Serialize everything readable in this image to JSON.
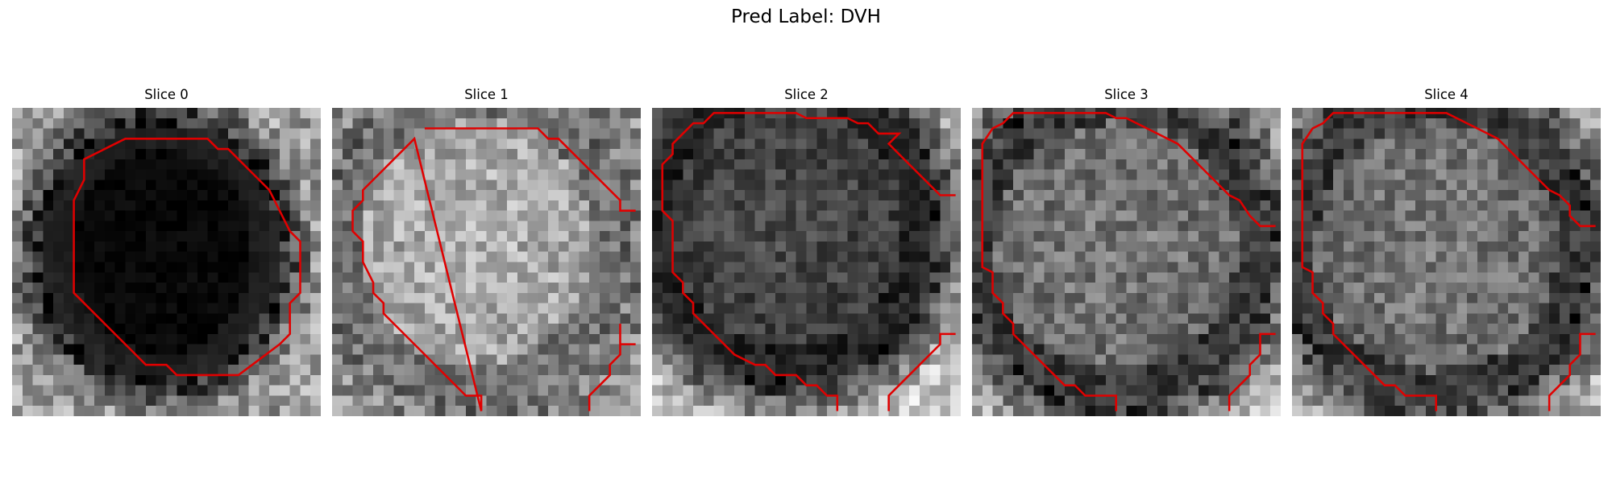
{
  "figure": {
    "title": "Pred Label: DVH"
  },
  "panels": [
    {
      "title": "Slice 0",
      "tissue": "dark",
      "contour_color": "#e00000"
    },
    {
      "title": "Slice 1",
      "tissue": "light",
      "contour_color": "#e00000"
    },
    {
      "title": "Slice 2",
      "tissue": "mid-dark",
      "contour_color": "#e00000"
    },
    {
      "title": "Slice 3",
      "tissue": "mid",
      "contour_color": "#e00000"
    },
    {
      "title": "Slice 4",
      "tissue": "mid",
      "contour_color": "#e00000"
    }
  ]
}
